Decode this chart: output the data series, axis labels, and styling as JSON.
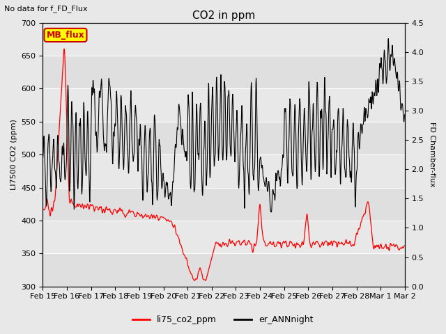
{
  "title": "CO2 in ppm",
  "top_label": "No data for f_FD_Flux",
  "ylabel_left": "LI7500 CO2 (ppm)",
  "ylabel_right": "FD Chamber-flux",
  "ylim_left": [
    300,
    700
  ],
  "ylim_right": [
    0.0,
    4.5
  ],
  "yticks_left": [
    300,
    350,
    400,
    450,
    500,
    550,
    600,
    650,
    700
  ],
  "yticks_right": [
    0.0,
    0.5,
    1.0,
    1.5,
    2.0,
    2.5,
    3.0,
    3.5,
    4.0,
    4.5
  ],
  "xtick_labels": [
    "Feb 15",
    "Feb 16",
    "Feb 17",
    "Feb 18",
    "Feb 19",
    "Feb 20",
    "Feb 21",
    "Feb 22",
    "Feb 23",
    "Feb 24",
    "Feb 25",
    "Feb 26",
    "Feb 27",
    "Feb 28",
    "Mar 1",
    "Mar 2"
  ],
  "legend_entries": [
    "li75_co2_ppm",
    "er_ANNnight"
  ],
  "line1_color": "#ff0000",
  "line2_color": "#000000",
  "bg_color": "#e8e8e8",
  "plot_bg": "#e8e8e8",
  "inset_label": "MB_flux",
  "inset_color": "#ffff00",
  "inset_border": "#cc0000"
}
